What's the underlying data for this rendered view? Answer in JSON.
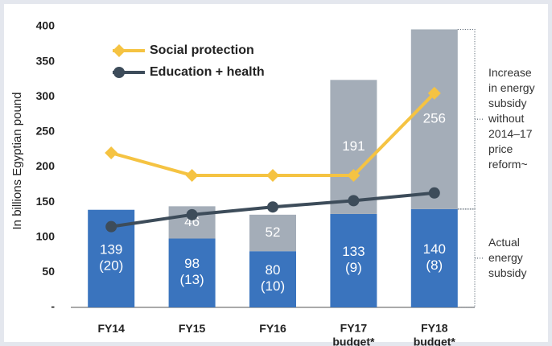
{
  "chart_data": {
    "type": "bar",
    "y_label": "In billions Egyptian pound",
    "categories": [
      "FY14",
      "FY15",
      "FY16",
      "FY17 budget*",
      "FY18 budget*"
    ],
    "ylim": [
      0,
      400
    ],
    "yticks": [
      {
        "value": 0,
        "label": "-"
      },
      50,
      100,
      150,
      200,
      250,
      300,
      350,
      400
    ],
    "series": [
      {
        "name": "Actual energy subsidy",
        "kind": "bar",
        "color": "#3a74be",
        "values": [
          139,
          98,
          80,
          133,
          140
        ],
        "value_labels": [
          "139 (20)",
          "98 (13)",
          "80 (10)",
          "133 (9)",
          "140 (8)"
        ]
      },
      {
        "name": "Increase in energy subsidy without 2014–17 price reform~",
        "kind": "bar",
        "color": "#a4adb8",
        "values": [
          null,
          46,
          52,
          191,
          256
        ]
      },
      {
        "name": "Social protection",
        "kind": "line",
        "marker": "diamond",
        "color": "#f5c342",
        "values": [
          220,
          188,
          188,
          188,
          305
        ]
      },
      {
        "name": "Education + health",
        "kind": "line",
        "marker": "circle",
        "color": "#3d4c5a",
        "values": [
          115,
          132,
          143,
          152,
          163
        ]
      }
    ]
  }
}
